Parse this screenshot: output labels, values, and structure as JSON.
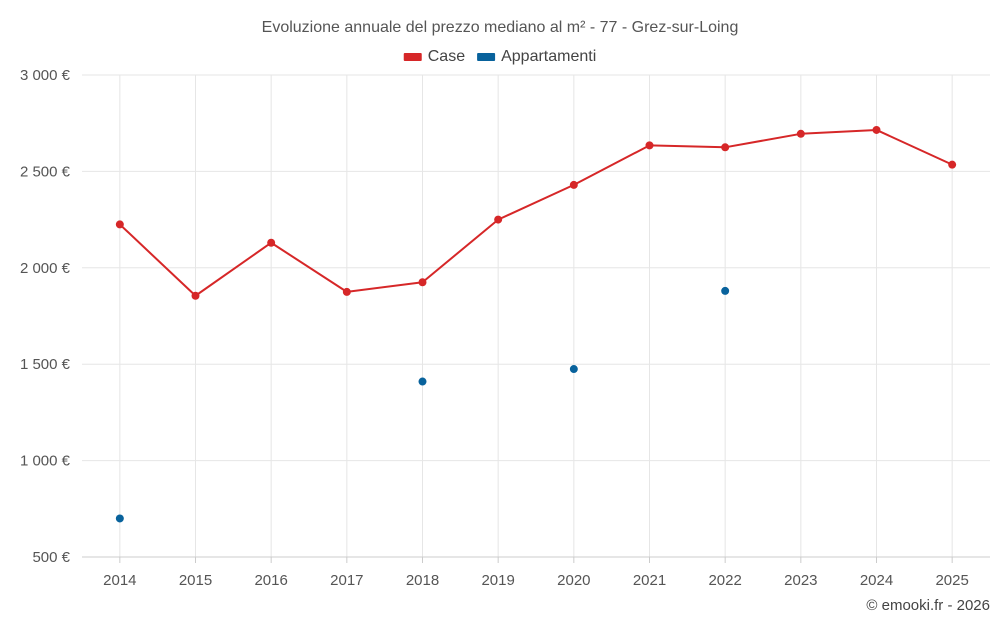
{
  "chart_data": {
    "type": "line",
    "title": "Evoluzione annuale del prezzo mediano al m² - 77 - Grez-sur-Loing",
    "categories": [
      "2014",
      "2015",
      "2016",
      "2017",
      "2018",
      "2019",
      "2020",
      "2021",
      "2022",
      "2023",
      "2024",
      "2025"
    ],
    "ylim": [
      500,
      3000
    ],
    "yticks": [
      500,
      1000,
      1500,
      2000,
      2500,
      3000
    ],
    "ytick_labels": [
      "500 €",
      "1 000 €",
      "1 500 €",
      "2 000 €",
      "2 500 €",
      "3 000 €"
    ],
    "xlabel": "",
    "ylabel": "",
    "grid": true,
    "legend_position": "top-center",
    "series": [
      {
        "name": "Case",
        "color": "#d62728",
        "style": "line",
        "values": [
          2225,
          1855,
          2130,
          1875,
          1925,
          2250,
          2430,
          2635,
          2625,
          2695,
          2715,
          2535
        ]
      },
      {
        "name": "Appartamenti",
        "color": "#08629c",
        "style": "points",
        "values": [
          700,
          null,
          null,
          null,
          1410,
          null,
          1475,
          null,
          1880,
          null,
          null,
          null
        ]
      }
    ]
  },
  "credit": "© emooki.fr - 2026"
}
